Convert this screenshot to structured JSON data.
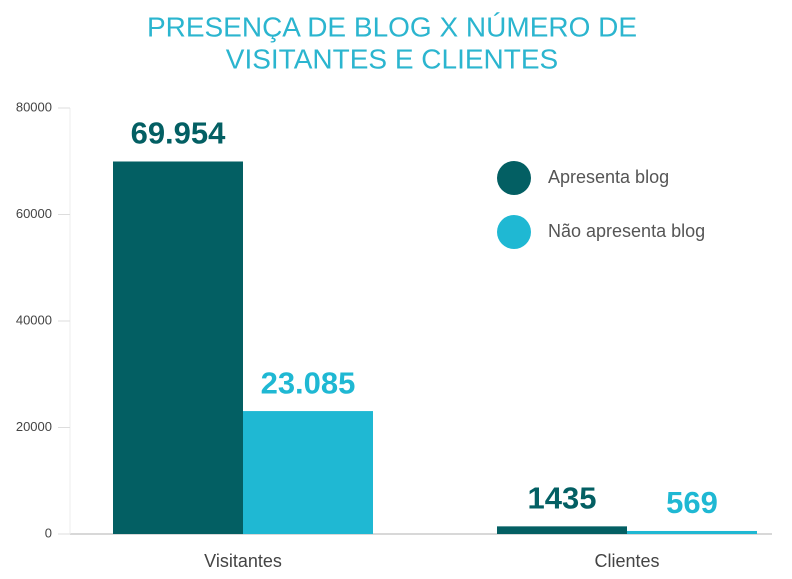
{
  "chart_data": {
    "type": "bar",
    "title": [
      "PRESENÇA DE BLOG X NÚMERO DE",
      "VISITANTES E CLIENTES"
    ],
    "categories": [
      "Visitantes",
      "Clientes"
    ],
    "series": [
      {
        "name": "Apresenta blog",
        "color": "#035f63",
        "values": [
          69954,
          1435
        ],
        "value_labels": [
          "69.954",
          "1435"
        ]
      },
      {
        "name": "Não apresenta blog",
        "color": "#1fb8d3",
        "values": [
          23085,
          569
        ],
        "value_labels": [
          "23.085",
          "569"
        ]
      }
    ],
    "ylim": [
      0,
      80000
    ],
    "yticks": [
      0,
      20000,
      40000,
      60000,
      80000
    ],
    "grid": false,
    "legend": "top-right"
  }
}
